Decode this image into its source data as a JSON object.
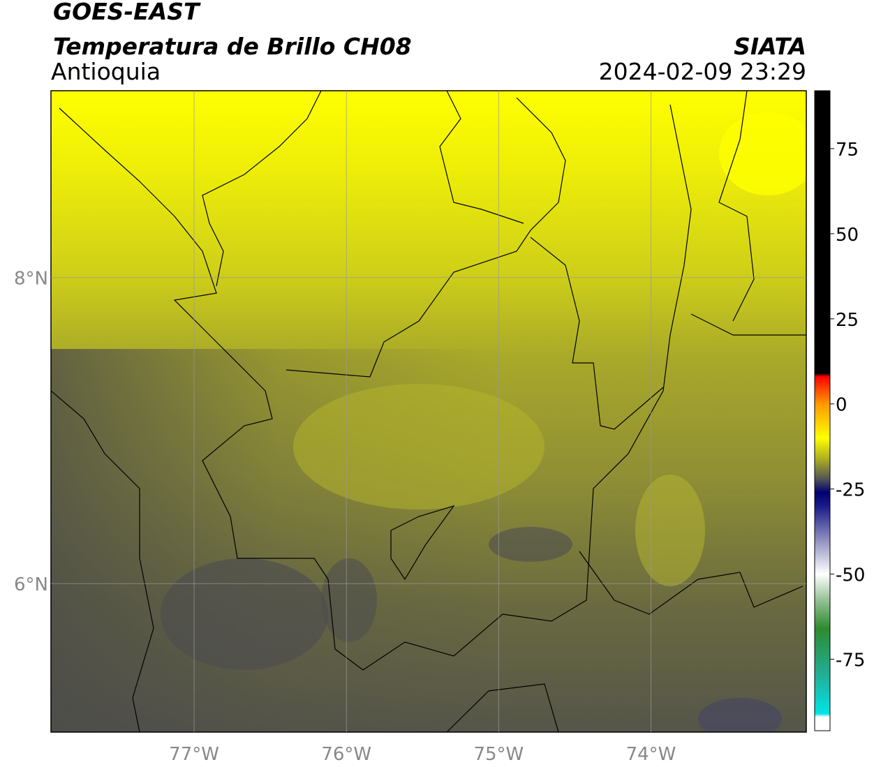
{
  "header": {
    "satellite": "GOES-EAST",
    "product": "Temperatura de Brillo CH08",
    "region": "Antioquia",
    "agency": "SIATA",
    "timestamp": "2024-02-09 23:29"
  },
  "map": {
    "lonlim": [
      -77.94,
      -72.98
    ],
    "latlim": [
      5.03,
      9.22
    ],
    "lonticks": [
      {
        "value": -77,
        "label": "77°W"
      },
      {
        "value": -76,
        "label": "76°W"
      },
      {
        "value": -75,
        "label": "75°W"
      },
      {
        "value": -74,
        "label": "74°W"
      }
    ],
    "latticks": [
      {
        "value": 8,
        "label": "8°N"
      },
      {
        "value": 6,
        "label": "6°N"
      }
    ],
    "grid": true
  },
  "colorbar": {
    "lim": [
      -96,
      92
    ],
    "ticks": [
      75,
      50,
      25,
      0,
      -25,
      -50,
      -75
    ],
    "colorscale": [
      [
        -96,
        "#ffffff"
      ],
      [
        -92,
        "#ffffff"
      ],
      [
        -91,
        "#00e5e5"
      ],
      [
        -80,
        "#20b09a"
      ],
      [
        -66,
        "#2e8b2e"
      ],
      [
        -58,
        "#8fbf8f"
      ],
      [
        -50,
        "#ffffff"
      ],
      [
        -40,
        "#9090c0"
      ],
      [
        -30,
        "#1a1a8a"
      ],
      [
        -26,
        "#000070"
      ],
      [
        -22,
        "#555555"
      ],
      [
        -16,
        "#b0b020"
      ],
      [
        -10,
        "#ffff00"
      ],
      [
        0,
        "#ff9900"
      ],
      [
        8,
        "#ff0000"
      ],
      [
        9,
        "#000000"
      ],
      [
        92,
        "#000000"
      ]
    ]
  }
}
